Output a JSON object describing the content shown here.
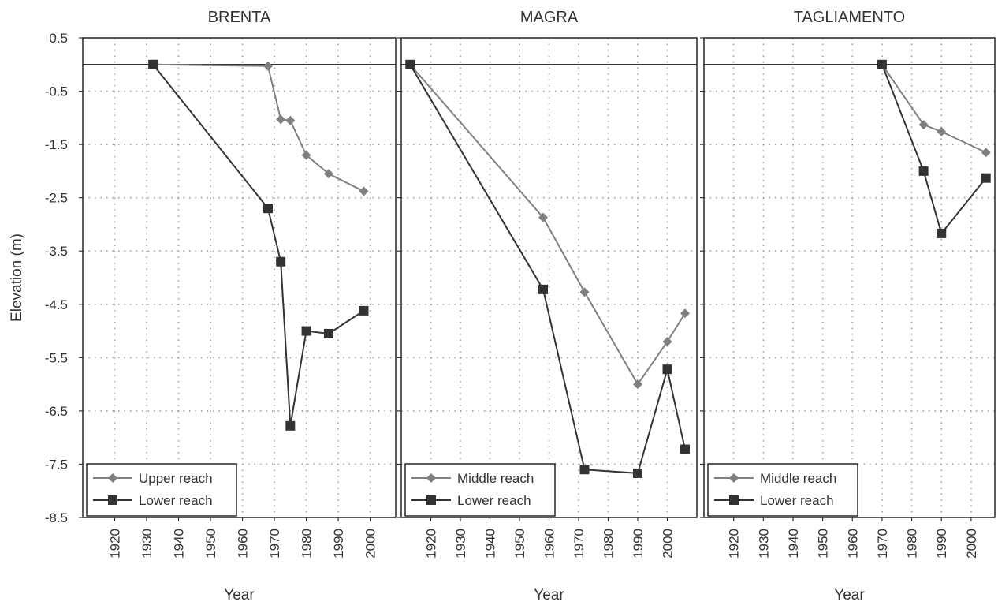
{
  "chart_data": {
    "type": "line",
    "ylabel": "Elevation (m)",
    "xlabel": "Year",
    "y_ticks": [
      "0.5",
      "-0.5",
      "-1.5",
      "-2.5",
      "-3.5",
      "-4.5",
      "-5.5",
      "-6.5",
      "-7.5",
      "-8.5"
    ],
    "ylim": [
      -8.5,
      0.5
    ],
    "grid": true,
    "colors": {
      "light_series": "#808080",
      "dark_series": "#333333",
      "frame": "#333333",
      "grid": "#9a9a9a"
    },
    "panels": [
      {
        "title": "BRENTA",
        "xlim": [
          1910,
          2008
        ],
        "x_ticks": [
          "1920",
          "1930",
          "1940",
          "1950",
          "1960",
          "1970",
          "1980",
          "1990",
          "2000"
        ],
        "legend_position": "bottom-left",
        "series": [
          {
            "name": "Upper reach",
            "marker": "diamond",
            "color": "#808080",
            "x": [
              1932,
              1968,
              1972,
              1975,
              1980,
              1987,
              1998
            ],
            "y": [
              0.0,
              -0.03,
              -1.03,
              -1.05,
              -1.7,
              -2.05,
              -2.38
            ]
          },
          {
            "name": "Lower reach",
            "marker": "square",
            "color": "#333333",
            "x": [
              1932,
              1968,
              1972,
              1975,
              1980,
              1987,
              1998
            ],
            "y": [
              0.0,
              -2.7,
              -3.7,
              -6.78,
              -5.0,
              -5.05,
              -4.62
            ]
          }
        ]
      },
      {
        "title": "MAGRA",
        "xlim": [
          1910,
          2010
        ],
        "x_ticks": [
          "1920",
          "1930",
          "1940",
          "1950",
          "1960",
          "1970",
          "1980",
          "1990",
          "2000"
        ],
        "legend_position": "bottom-left",
        "series": [
          {
            "name": "Middle reach",
            "marker": "diamond",
            "color": "#808080",
            "x": [
              1913,
              1958,
              1972,
              1990,
              2000,
              2006
            ],
            "y": [
              0.0,
              -2.87,
              -4.27,
              -6.0,
              -5.2,
              -4.67
            ]
          },
          {
            "name": "Lower reach",
            "marker": "square",
            "color": "#333333",
            "x": [
              1913,
              1958,
              1972,
              1990,
              2000,
              2006
            ],
            "y": [
              0.0,
              -4.22,
              -7.6,
              -7.67,
              -5.72,
              -7.22
            ]
          }
        ]
      },
      {
        "title": "TAGLIAMENTO",
        "xlim": [
          1910,
          2008
        ],
        "x_ticks": [
          "1920",
          "1930",
          "1940",
          "1950",
          "1960",
          "1970",
          "1980",
          "1990",
          "2000"
        ],
        "legend_position": "bottom-left",
        "series": [
          {
            "name": "Middle reach",
            "marker": "diamond",
            "color": "#808080",
            "x": [
              1970,
              1984,
              1990,
              2005
            ],
            "y": [
              0.0,
              -1.13,
              -1.26,
              -1.65
            ]
          },
          {
            "name": "Lower reach",
            "marker": "square",
            "color": "#333333",
            "x": [
              1970,
              1984,
              1990,
              2005
            ],
            "y": [
              0.0,
              -2.0,
              -3.17,
              -2.13
            ]
          }
        ]
      }
    ]
  }
}
